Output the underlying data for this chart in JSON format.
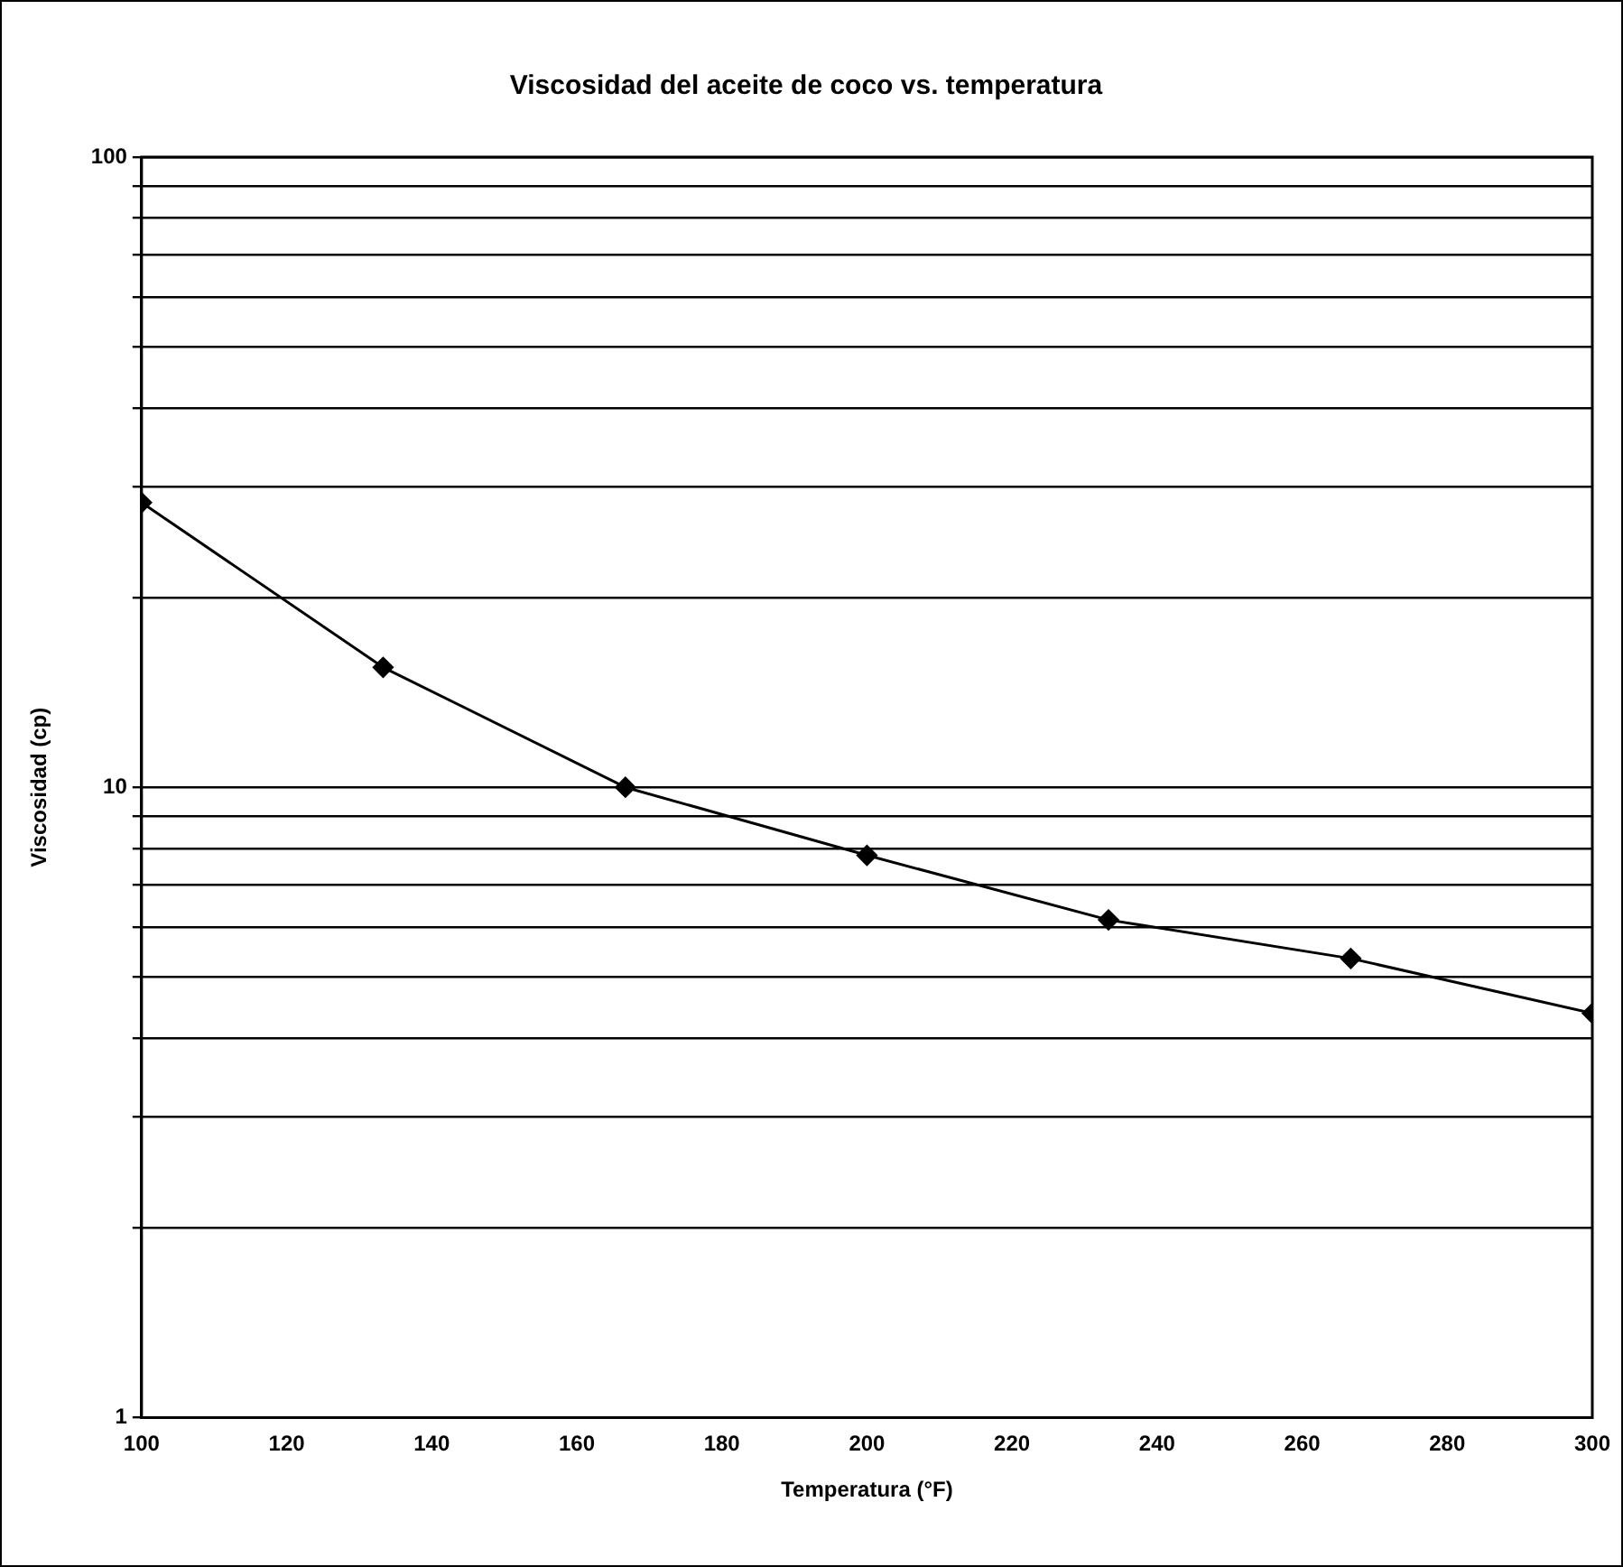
{
  "chart_data": {
    "type": "line",
    "title": "Viscosidad del aceite de coco vs. temperatura",
    "xlabel": "Temperatura (°F)",
    "ylabel": "Viscosidad (cp)",
    "x": [
      100,
      133.3,
      166.7,
      200,
      233.3,
      266.7,
      300
    ],
    "series": [
      {
        "color": "#000000",
        "values": [
          28.3,
          15.5,
          10.0,
          7.8,
          6.16,
          5.35,
          4.38
        ]
      }
    ],
    "log": "y",
    "grid": "y",
    "legend": false,
    "marker": "diamond",
    "line_style": "solid",
    "xlim": [
      100,
      300
    ],
    "xticks": [
      100,
      120,
      140,
      160,
      180,
      200,
      220,
      240,
      260,
      280,
      300
    ],
    "ylim": [
      1,
      100
    ],
    "yticks": [
      1,
      {
        "value": 2,
        "label": null
      },
      {
        "value": 3,
        "label": null
      },
      {
        "value": 4,
        "label": null
      },
      {
        "value": 5,
        "label": null
      },
      {
        "value": 6,
        "label": null
      },
      {
        "value": 7,
        "label": null
      },
      {
        "value": 8,
        "label": null
      },
      {
        "value": 9,
        "label": null
      },
      10,
      {
        "value": 20,
        "label": null
      },
      {
        "value": 30,
        "label": null
      },
      {
        "value": 40,
        "label": null
      },
      {
        "value": 50,
        "label": null
      },
      {
        "value": 60,
        "label": null
      },
      {
        "value": 70,
        "label": null
      },
      {
        "value": 80,
        "label": null
      },
      {
        "value": 90,
        "label": null
      },
      100
    ]
  }
}
